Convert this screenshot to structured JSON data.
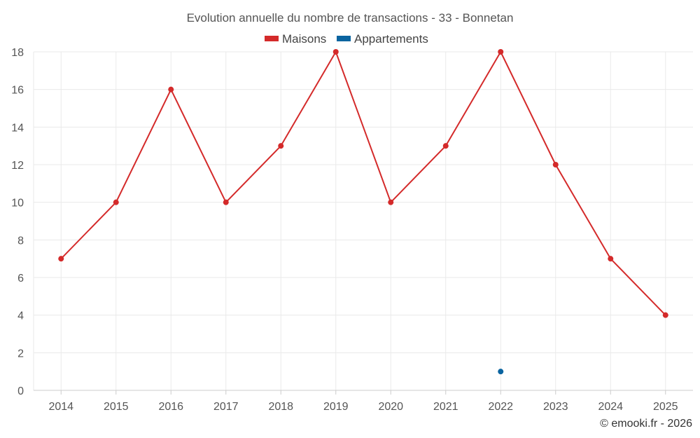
{
  "chart_data": {
    "type": "line",
    "title": "Evolution annuelle du nombre de transactions - 33 - Bonnetan",
    "categories": [
      "2014",
      "2015",
      "2016",
      "2017",
      "2018",
      "2019",
      "2020",
      "2021",
      "2022",
      "2023",
      "2024",
      "2025"
    ],
    "series": [
      {
        "name": "Maisons",
        "color": "#d42a2a",
        "values": [
          7,
          10,
          16,
          10,
          13,
          18,
          10,
          13,
          18,
          12,
          7,
          4
        ]
      },
      {
        "name": "Appartements",
        "color": "#0a64a0",
        "values": [
          null,
          null,
          null,
          null,
          null,
          null,
          null,
          null,
          1,
          null,
          null,
          null
        ]
      }
    ],
    "ylim": [
      0,
      18
    ],
    "yticks": [
      0,
      2,
      4,
      6,
      8,
      10,
      12,
      14,
      16,
      18
    ],
    "xlabel": "",
    "ylabel": "",
    "grid": true,
    "legend_position": "top-center"
  },
  "credit": "© emooki.fr - 2026"
}
